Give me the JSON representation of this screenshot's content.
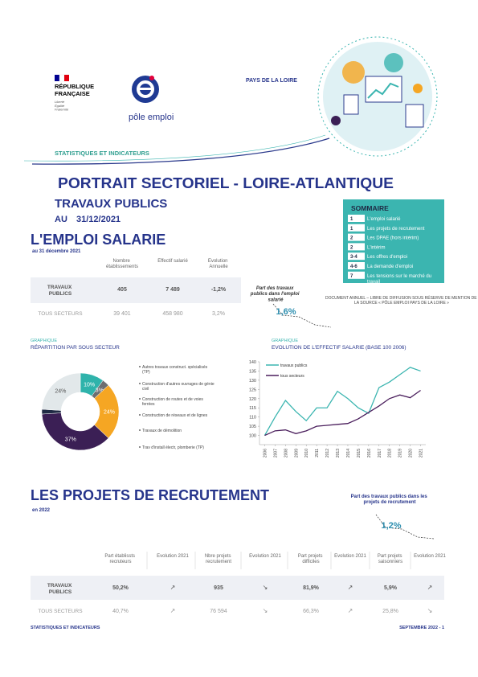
{
  "header": {
    "republique": "RÉPUBLIQUE FRANÇAISE",
    "devise": "Liberté Égalité Fraternité",
    "pole_emploi": "pôle emploi",
    "region": "PAYS DE LA LOIRE",
    "series": "STATISTIQUES ET INDICATEURS"
  },
  "title": {
    "main": "PORTRAIT SECTORIEL - LOIRE-ATLANTIQUE",
    "sector": "TRAVAUX PUBLICS",
    "date_prefix": "AU",
    "date": "31/12/2021"
  },
  "sommaire": {
    "title": "SOMMAIRE",
    "items": [
      {
        "page": "1",
        "label": "L'emploi salarié"
      },
      {
        "page": "1",
        "label": "Les projets de recrutement"
      },
      {
        "page": "2",
        "label": "Les DPAE (hors intérim)"
      },
      {
        "page": "2",
        "label": "L'intérim"
      },
      {
        "page": "3-4",
        "label": "Les offres d'emploi"
      },
      {
        "page": "4-6",
        "label": "La demande d'emploi"
      },
      {
        "page": "7",
        "label": "Les tensions sur le marché du travail"
      }
    ]
  },
  "note": "DOCUMENT ANNUEL – LIBRE DE DIFFUSION SOUS RÉSERVE DE MENTION DE LA SOURCE « PÔLE EMPLOI PAYS DE LA LOIRE »",
  "emploi": {
    "title": "L'EMPLOI SALARIE",
    "subtitle": "au 31 décembre 2021",
    "table": {
      "headers": [
        "Nombre établissements",
        "Effectif salarié",
        "Evolution Annuelle"
      ],
      "rows": [
        [
          "TRAVAUX PUBLICS",
          "405",
          "7 489",
          "-1,2%"
        ],
        [
          "TOUS SECTEURS",
          "39 401",
          "458 980",
          "3,2%"
        ]
      ]
    },
    "share": {
      "label": "Part des travaux publics dans l'emploi salarié",
      "value": "1,6%"
    }
  },
  "chart_data": [
    {
      "type": "pie",
      "label": "GRAPHIQUE",
      "title": "RÉPARTITION PAR SOUS SECTEUR",
      "donut": true,
      "categories": [
        "Autres travaux construct. spécialisés (TP)",
        "Construction d'autres ouvrages de génie civil",
        "Construction de routes et de voies ferrées",
        "Construction de réseaux et de lignes",
        "Travaux de démolition",
        "Trav d'install électr, plomberie (TP)"
      ],
      "values": [
        10,
        3,
        24,
        37,
        2,
        24
      ],
      "value_labels": [
        "10%",
        "3%",
        "24%",
        "37%",
        null,
        "24%"
      ],
      "colors": [
        "#2fb3ab",
        "#6d6e71",
        "#f5a623",
        "#3b1f55",
        "#1f2a44",
        "#e2e8ea"
      ]
    },
    {
      "type": "line",
      "label": "GRAPHIQUE",
      "title": "EVOLUTION DE L'EFFECTIF SALARIE",
      "subtitle": "(BASE 100 2006)",
      "x": [
        2006,
        2007,
        2008,
        2009,
        2010,
        2011,
        2012,
        2013,
        2014,
        2015,
        2016,
        2017,
        2018,
        2019,
        2020,
        2021
      ],
      "xlim": [
        2005.5,
        2021.5
      ],
      "xticks": [
        2006,
        2007,
        2008,
        2009,
        2010,
        2011,
        2012,
        2013,
        2014,
        2015,
        2016,
        2017,
        2018,
        2019,
        2020,
        2021
      ],
      "ylim": [
        95,
        140
      ],
      "yticks": [
        100,
        105,
        110,
        115,
        120,
        125,
        130,
        135,
        140
      ],
      "grid": false,
      "legend": "upper left",
      "series": [
        {
          "name": "travaux publics",
          "color": "#3bb5b0",
          "values": [
            100,
            110,
            119,
            113,
            108,
            115,
            115,
            124,
            120,
            115,
            112,
            126,
            129,
            133,
            137,
            135
          ]
        },
        {
          "name": "tous secteurs",
          "color": "#4a1e5c",
          "values": [
            100,
            102.5,
            103,
            101,
            102.5,
            105,
            105.5,
            106,
            106.5,
            109,
            112.5,
            116,
            120,
            122,
            120.5,
            124.5
          ]
        }
      ]
    }
  ],
  "recrutement": {
    "title": "LES PROJETS DE RECRUTEMENT",
    "subtitle": "en 2022",
    "table": {
      "headers": [
        "Part établissts recruteurs",
        "Evolution 2021",
        "Nbre projets recrutement",
        "Evolution 2021",
        "Part projets difficiles",
        "Evolution 2021",
        "Part projets saisonniers",
        "Evolution 2021"
      ],
      "rows": [
        [
          "TRAVAUX PUBLICS",
          "50,2%",
          "↗",
          "935",
          "↘",
          "81,9%",
          "↗",
          "5,9%",
          "↗"
        ],
        [
          "TOUS SECTEURS",
          "40,7%",
          "↗",
          "76 594",
          "↘",
          "66,3%",
          "↗",
          "25,8%",
          "↘"
        ]
      ]
    },
    "share": {
      "label": "Part des travaux publics dans les projets de recrutement",
      "value": "1,2%"
    }
  },
  "footer": {
    "left": "STATISTIQUES ET INDICATEURS",
    "right": "SEPTEMBRE 2022 - 1"
  }
}
